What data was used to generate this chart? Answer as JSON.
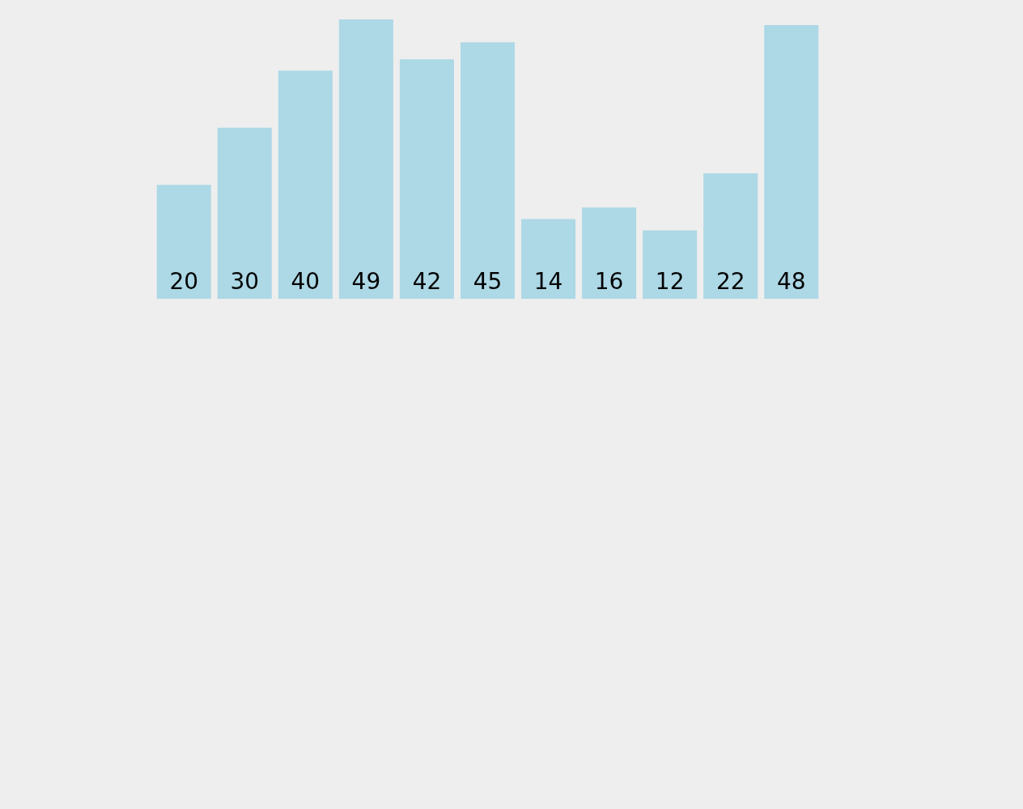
{
  "chart_data": {
    "type": "bar",
    "categories": [
      null,
      null,
      null,
      null,
      null,
      null,
      null,
      null,
      null,
      null,
      null
    ],
    "values": [
      20,
      30,
      40,
      49,
      42,
      45,
      14,
      16,
      12,
      22,
      48
    ],
    "color": "#add8e6",
    "data_labels": true
  }
}
